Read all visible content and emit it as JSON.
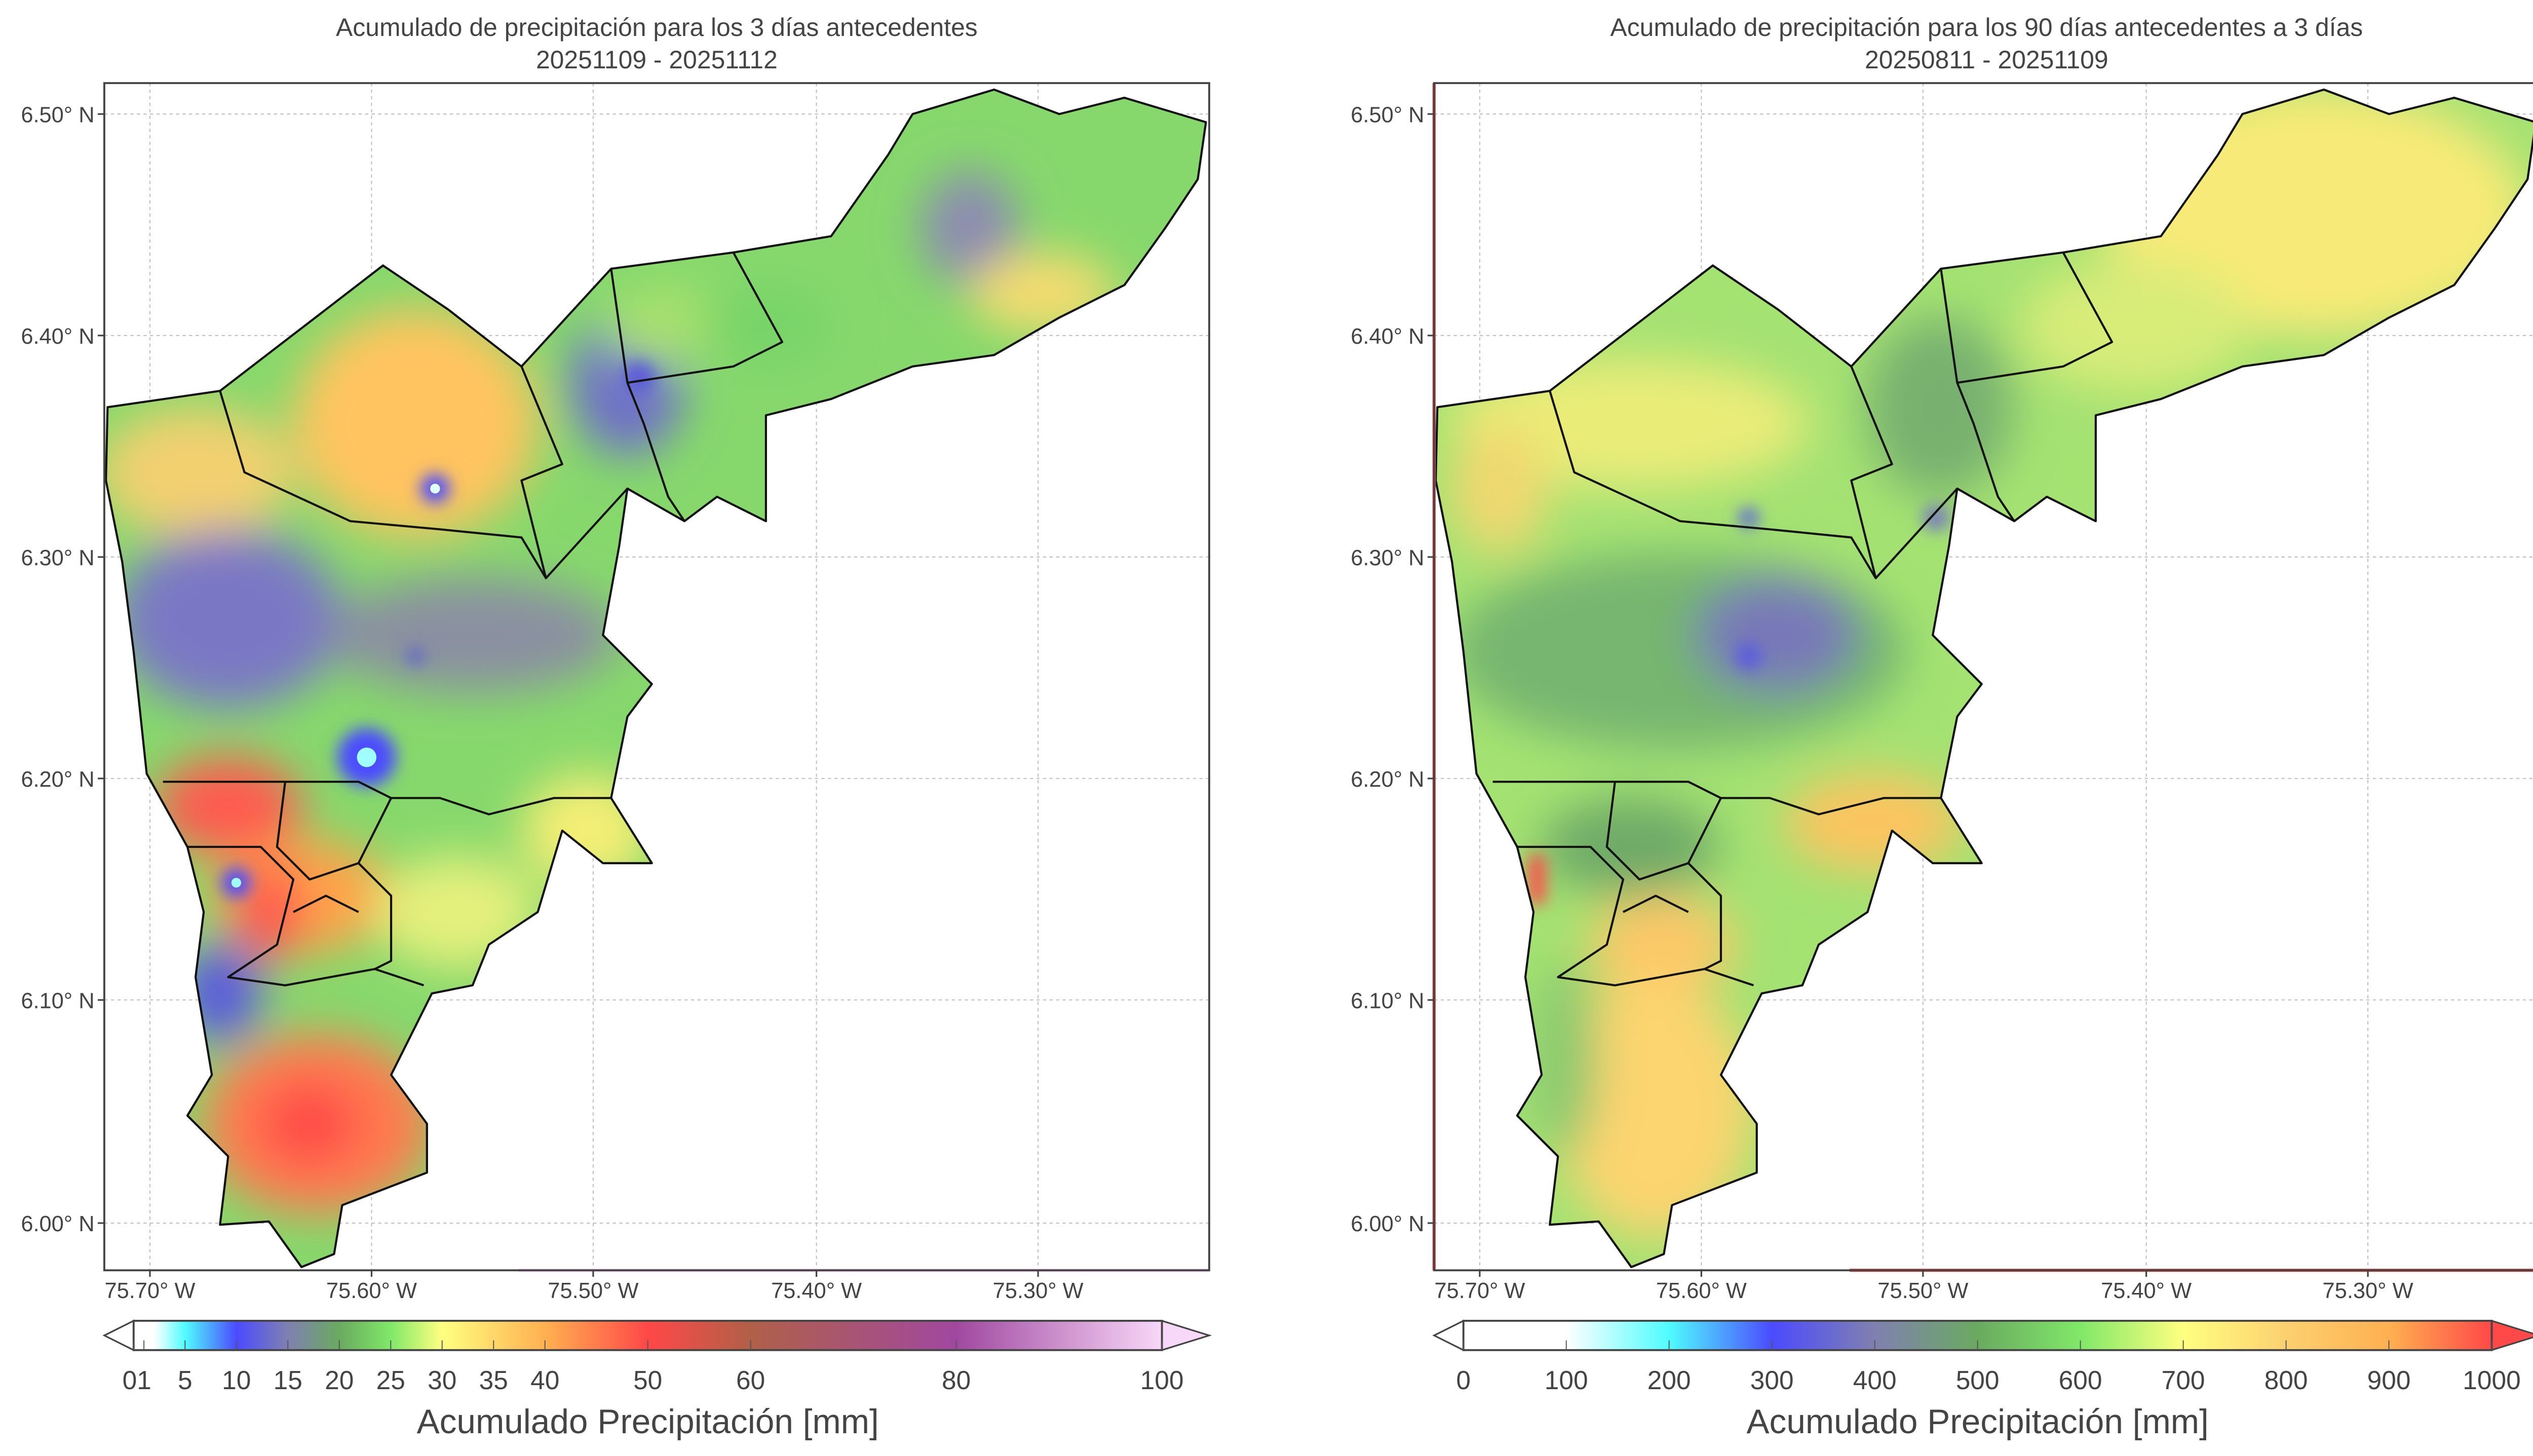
{
  "maps": [
    {
      "title_line1": "Acumulado de precipitación para los 3 días antecedentes",
      "title_line2": "20251109 - 20251112",
      "lat_ticks": [
        "6.50° N",
        "6.40° N",
        "6.30° N",
        "6.20° N",
        "6.10° N",
        "6.00° N"
      ],
      "lon_ticks": [
        "75.70° W",
        "75.60° W",
        "75.50° W",
        "75.40° W",
        "75.30° W"
      ],
      "colorbar": {
        "label": "Acumulado Precipitación [mm]",
        "min": 0,
        "max": 100,
        "extend": "both",
        "ticks": [
          0,
          1,
          5,
          10,
          15,
          20,
          25,
          30,
          35,
          40,
          50,
          60,
          80,
          100
        ],
        "tick_labels": [
          "0",
          "1",
          "5",
          "10",
          "15",
          "20",
          "25",
          "30",
          "35",
          "40",
          "50",
          "60",
          "80",
          "100"
        ],
        "colors": [
          [
            0,
            "#ffffff"
          ],
          [
            0.02,
            "#ffffff"
          ],
          [
            0.05,
            "#4ffcff"
          ],
          [
            0.1,
            "#4b4bff"
          ],
          [
            0.15,
            "#7f80b0"
          ],
          [
            0.2,
            "#6aaa60"
          ],
          [
            0.25,
            "#80e868"
          ],
          [
            0.3,
            "#ffff80"
          ],
          [
            0.4,
            "#ffb050"
          ],
          [
            0.5,
            "#ff4848"
          ],
          [
            0.6,
            "#b06048"
          ],
          [
            0.8,
            "#a048a0"
          ],
          [
            1,
            "#f8d8f8"
          ]
        ],
        "under_color": "#ffffff",
        "over_color": "#f8d8f8"
      }
    },
    {
      "title_line1": "Acumulado de precipitación para los 90 días antecedentes a 3 días",
      "title_line2": "20250811 - 20251109",
      "lat_ticks": [
        "6.50° N",
        "6.40° N",
        "6.30° N",
        "6.20° N",
        "6.10° N",
        "6.00° N"
      ],
      "lon_ticks": [
        "75.70° W",
        "75.60° W",
        "75.50° W",
        "75.40° W",
        "75.30° W"
      ],
      "colorbar": {
        "label": "Acumulado Precipitación [mm]",
        "min": 0,
        "max": 1000,
        "extend": "both",
        "ticks": [
          0,
          100,
          200,
          300,
          400,
          500,
          600,
          700,
          800,
          900,
          1000
        ],
        "tick_labels": [
          "0",
          "100",
          "200",
          "300",
          "400",
          "500",
          "600",
          "700",
          "800",
          "900",
          "1000"
        ],
        "colors": [
          [
            0,
            "#ffffff"
          ],
          [
            0.1,
            "#ffffff"
          ],
          [
            0.2,
            "#4ffcff"
          ],
          [
            0.3,
            "#4b4bff"
          ],
          [
            0.4,
            "#8080b0"
          ],
          [
            0.5,
            "#6aaa60"
          ],
          [
            0.6,
            "#80e868"
          ],
          [
            0.7,
            "#ffff80"
          ],
          [
            0.8,
            "#fcd070"
          ],
          [
            0.9,
            "#ffb050"
          ],
          [
            1,
            "#ff4848"
          ]
        ],
        "under_color": "#ffffff",
        "over_color": "#ff4848"
      }
    }
  ]
}
